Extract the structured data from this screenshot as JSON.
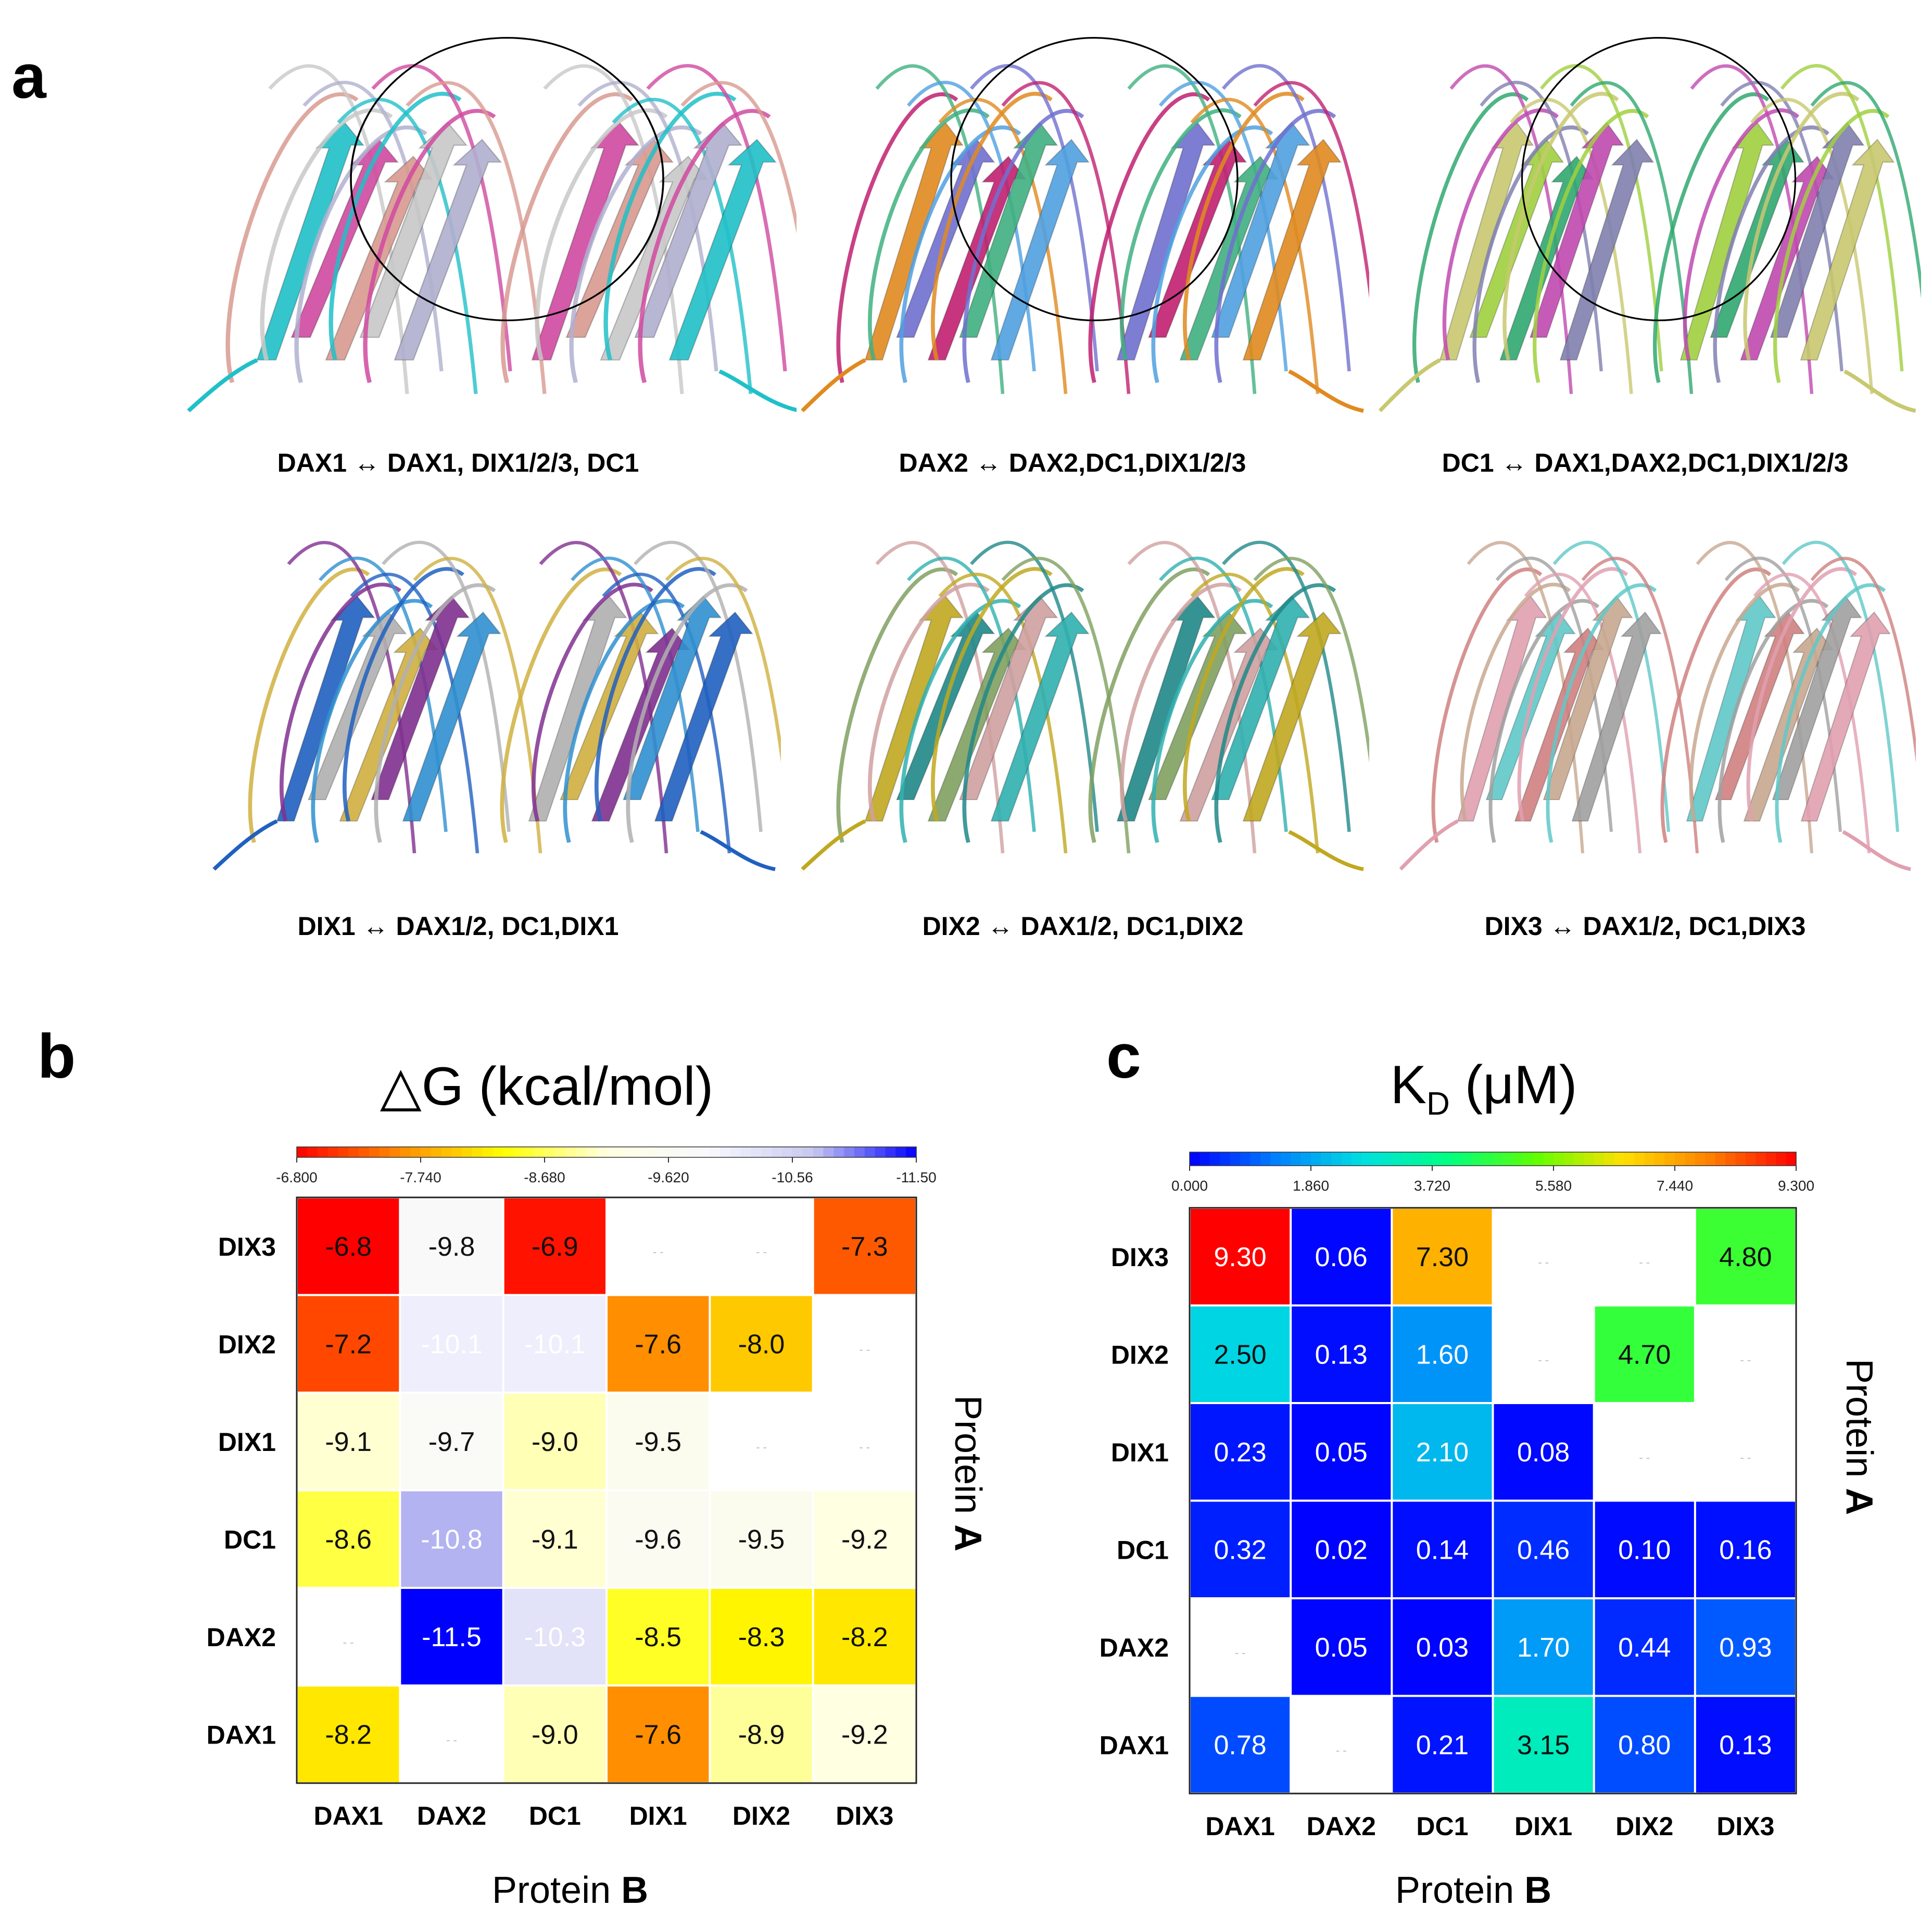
{
  "panel_a": {
    "letter": "a",
    "structures": [
      {
        "caption": "DAX1 ↔ DAX1,  DIX1/2/3,  DC1",
        "colors": [
          "#20c0c8",
          "#d04aa0",
          "#d89a90",
          "#c8c8c8",
          "#b0b0d0"
        ],
        "circle": true
      },
      {
        "caption": "DAX2 ↔ DAX2,DC1,DIX1/2/3",
        "colors": [
          "#e08a20",
          "#7070d0",
          "#c02070",
          "#40b080",
          "#50a0e0"
        ],
        "circle": true
      },
      {
        "caption": "DC1 ↔ DAX1,DAX2,DC1,DIX1/2/3",
        "colors": [
          "#c8c870",
          "#a0d040",
          "#30a870",
          "#c04ab0",
          "#8080b0"
        ],
        "circle": true
      },
      {
        "caption": "DIX1 ↔ DAX1/2,  DC1,DIX1",
        "colors": [
          "#2060c0",
          "#b0b0b0",
          "#d0b040",
          "#803090",
          "#3090d0"
        ],
        "circle": false
      },
      {
        "caption": "DIX2 ↔ DAX1/2,  DC1,DIX2",
        "colors": [
          "#c0a820",
          "#208888",
          "#80a060",
          "#d0a0a0",
          "#30b0b0"
        ],
        "circle": false
      },
      {
        "caption": "DIX3 ↔ DAX1/2,  DC1,DIX3",
        "colors": [
          "#e0a0b0",
          "#60c8c8",
          "#d08080",
          "#c8a890",
          "#a0a0a0"
        ],
        "circle": false
      }
    ]
  },
  "panel_b": {
    "letter": "b",
    "title": "△G (kcal/mol)",
    "colorbar_ticks": [
      "-6.800",
      "-7.740",
      "-8.680",
      "-9.620",
      "-10.56",
      "-11.50"
    ],
    "xlabel_prefix": "Protein ",
    "xlabel_bold": "B",
    "ylabel_prefix": "Protein ",
    "ylabel_bold": "A",
    "empty_mark": "- -"
  },
  "panel_c": {
    "letter": "c",
    "title_main": "K",
    "title_sub": "D",
    "title_unit": " (μM)",
    "colorbar_ticks": [
      "0.000",
      "1.860",
      "3.720",
      "5.580",
      "7.440",
      "9.300"
    ],
    "xlabel_prefix": "Protein ",
    "xlabel_bold": "B",
    "ylabel_prefix": "Protein ",
    "ylabel_bold": "A",
    "empty_mark": "- -"
  },
  "chart_data": [
    {
      "type": "heatmap",
      "title": "△G (kcal/mol)",
      "xlabel": "Protein B",
      "ylabel": "Protein A",
      "x_categories": [
        "DAX1",
        "DAX2",
        "DC1",
        "DIX1",
        "DIX2",
        "DIX3"
      ],
      "y_categories": [
        "DIX3",
        "DIX2",
        "DIX1",
        "DC1",
        "DAX2",
        "DAX1"
      ],
      "values": [
        [
          -6.8,
          -9.8,
          -6.9,
          null,
          null,
          -7.3
        ],
        [
          -7.2,
          -10.1,
          -10.1,
          -7.6,
          -8.0,
          null
        ],
        [
          -9.1,
          -9.7,
          -9.0,
          -9.5,
          null,
          null
        ],
        [
          -8.6,
          -10.8,
          -9.1,
          -9.6,
          -9.5,
          -9.2
        ],
        [
          null,
          -11.5,
          -10.3,
          -8.5,
          -8.3,
          -8.2
        ],
        [
          -8.2,
          null,
          -9.0,
          -7.6,
          -8.9,
          -9.2
        ]
      ],
      "labels": [
        [
          "-6.8",
          "-9.8",
          "-6.9",
          null,
          null,
          "-7.3"
        ],
        [
          "-7.2",
          "-10.1",
          "-10.1",
          "-7.6",
          "-8.0",
          null
        ],
        [
          "-9.1",
          "-9.7",
          "-9.0",
          "-9.5",
          null,
          null
        ],
        [
          "-8.6",
          "-10.8",
          "-9.1",
          "-9.6",
          "-9.5",
          "-9.2"
        ],
        [
          null,
          "-11.5",
          "-10.3",
          "-8.5",
          "-8.3",
          "-8.2"
        ],
        [
          "-8.2",
          null,
          "-9.0",
          "-7.6",
          "-8.9",
          "-9.2"
        ]
      ],
      "colorbar_range": [
        -6.8,
        -11.5
      ],
      "colormap": [
        "#ff0000",
        "#ff8c00",
        "#ffff00",
        "#ffffe0",
        "#f8f8ff",
        "#c8c8f0",
        "#0000ff"
      ]
    },
    {
      "type": "heatmap",
      "title": "KD (μM)",
      "xlabel": "Protein B",
      "ylabel": "Protein A",
      "x_categories": [
        "DAX1",
        "DAX2",
        "DC1",
        "DIX1",
        "DIX2",
        "DIX3"
      ],
      "y_categories": [
        "DIX3",
        "DIX2",
        "DIX1",
        "DC1",
        "DAX2",
        "DAX1"
      ],
      "values": [
        [
          9.3,
          0.06,
          7.3,
          null,
          null,
          4.8
        ],
        [
          2.5,
          0.13,
          1.6,
          null,
          4.7,
          null
        ],
        [
          0.23,
          0.05,
          2.1,
          0.08,
          null,
          null
        ],
        [
          0.32,
          0.02,
          0.14,
          0.46,
          0.1,
          0.16
        ],
        [
          null,
          0.05,
          0.03,
          1.7,
          0.44,
          0.93
        ],
        [
          0.78,
          null,
          0.21,
          3.15,
          0.8,
          0.13
        ]
      ],
      "labels": [
        [
          "9.30",
          "0.06",
          "7.30",
          null,
          null,
          "4.80"
        ],
        [
          "2.50",
          "0.13",
          "1.60",
          null,
          "4.70",
          null
        ],
        [
          "0.23",
          "0.05",
          "2.10",
          "0.08",
          null,
          null
        ],
        [
          "0.32",
          "0.02",
          "0.14",
          "0.46",
          "0.10",
          "0.16"
        ],
        [
          null,
          "0.05",
          "0.03",
          "1.70",
          "0.44",
          "0.93"
        ],
        [
          "0.78",
          null,
          "0.21",
          "3.15",
          "0.80",
          "0.13"
        ]
      ],
      "colorbar_range": [
        0.0,
        9.3
      ],
      "colormap": [
        "#0000ff",
        "#0080ff",
        "#00e0e0",
        "#00ff80",
        "#60ff00",
        "#ffe000",
        "#ff8000",
        "#ff0000"
      ]
    }
  ]
}
